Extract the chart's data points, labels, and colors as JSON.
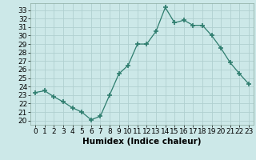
{
  "x": [
    0,
    1,
    2,
    3,
    4,
    5,
    6,
    7,
    8,
    9,
    10,
    11,
    12,
    13,
    14,
    15,
    16,
    17,
    18,
    19,
    20,
    21,
    22,
    23
  ],
  "y": [
    23.3,
    23.5,
    22.8,
    22.2,
    21.5,
    21.0,
    20.1,
    20.5,
    23.0,
    25.5,
    26.5,
    29.0,
    29.0,
    30.5,
    33.3,
    31.5,
    31.8,
    31.2,
    31.2,
    30.0,
    28.5,
    26.8,
    25.5,
    24.3
  ],
  "line_color": "#2e7d6e",
  "marker": "+",
  "marker_size": 4.5,
  "bg_color": "#cce8e8",
  "grid_color": "#b0d0d0",
  "xlabel": "Humidex (Indice chaleur)",
  "xlim": [
    -0.5,
    23.5
  ],
  "ylim": [
    19.5,
    33.8
  ],
  "yticks": [
    20,
    21,
    22,
    23,
    24,
    25,
    26,
    27,
    28,
    29,
    30,
    31,
    32,
    33
  ],
  "xticks": [
    0,
    1,
    2,
    3,
    4,
    5,
    6,
    7,
    8,
    9,
    10,
    11,
    12,
    13,
    14,
    15,
    16,
    17,
    18,
    19,
    20,
    21,
    22,
    23
  ],
  "label_fontsize": 7.5,
  "tick_fontsize": 6.5
}
